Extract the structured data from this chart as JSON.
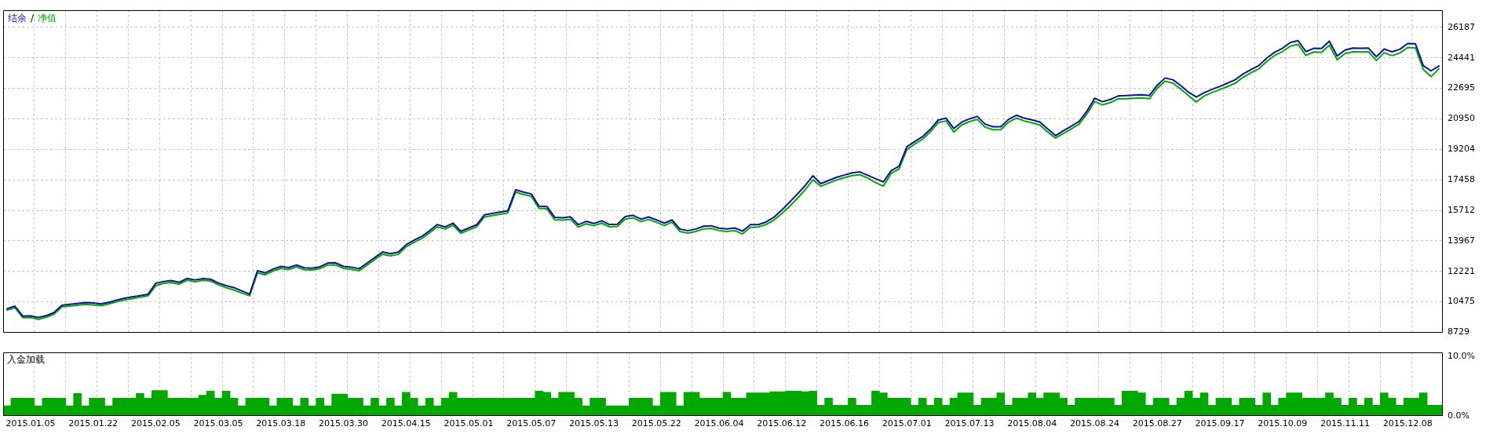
{
  "chart_data": [
    {
      "type": "line",
      "legend": "top left",
      "grid": true,
      "tick_labels": "y",
      "annotations": [
        "/"
      ],
      "categories": [
        null,
        null,
        null,
        "2015.01.05",
        null,
        null,
        null,
        null,
        null,
        null,
        null,
        "2015.01.22",
        null,
        null,
        null,
        null,
        null,
        null,
        null,
        "2015.02.05",
        null,
        null,
        null,
        null,
        null,
        null,
        null,
        "2015.03.05",
        null,
        null,
        null,
        null,
        null,
        null,
        null,
        "2015.03.18",
        null,
        null,
        null,
        null,
        null,
        null,
        null,
        "2015.03.30",
        null,
        null,
        null,
        null,
        null,
        null,
        null,
        "2015.04.15",
        null,
        null,
        null,
        null,
        null,
        null,
        null,
        "2015.05.01",
        null,
        null,
        null,
        null,
        null,
        null,
        null,
        "2015.05.07",
        null,
        null,
        null,
        null,
        null,
        null,
        null,
        "2015.05.13",
        null,
        null,
        null,
        null,
        null,
        null,
        null,
        "2015.05.22",
        null,
        null,
        null,
        null,
        null,
        null,
        null,
        "2015.06.04",
        null,
        null,
        null,
        null,
        null,
        null,
        null,
        "2015.06.12",
        null,
        null,
        null,
        null,
        null,
        null,
        null,
        "2015.06.16",
        null,
        null,
        null,
        null,
        null,
        null,
        null,
        "2015.07.01",
        null,
        null,
        null,
        null,
        null,
        null,
        null,
        "2015.07.13",
        null,
        null,
        null,
        null,
        null,
        null,
        null,
        "2015.08.04",
        null,
        null,
        null,
        null,
        null,
        null,
        null,
        "2015.08.24",
        null,
        null,
        null,
        null,
        null,
        null,
        null,
        "2015.08.27",
        null,
        null,
        null,
        null,
        null,
        null,
        null,
        "2015.09.17",
        null,
        null,
        null,
        null,
        null,
        null,
        null,
        "2015.10.09",
        null,
        null,
        null,
        null,
        null,
        null,
        null,
        "2015.11.11",
        null,
        null,
        null,
        null,
        null,
        null,
        null,
        "2015.12.08",
        null,
        null,
        null,
        null
      ],
      "ylim": [
        8729,
        27190
      ],
      "yticks": [
        8729,
        10475,
        12221,
        13967,
        15712,
        17458,
        19204,
        20950,
        22695,
        24441,
        26187
      ],
      "series": [
        {
          "name": "结余",
          "color": "#1010a0",
          "values": [
            10080,
            10230,
            9660,
            9670,
            9580,
            9680,
            9860,
            10280,
            10330,
            10380,
            10430,
            10410,
            10350,
            10440,
            10570,
            10680,
            10760,
            10830,
            10900,
            11530,
            11640,
            11690,
            11590,
            11810,
            11730,
            11800,
            11770,
            11550,
            11400,
            11290,
            11100,
            10910,
            12250,
            12130,
            12350,
            12500,
            12430,
            12580,
            12420,
            12400,
            12480,
            12700,
            12710,
            12500,
            12450,
            12370,
            12690,
            13010,
            13330,
            13230,
            13320,
            13740,
            14000,
            14220,
            14540,
            14900,
            14760,
            14980,
            14510,
            14700,
            14880,
            15450,
            15530,
            15610,
            15690,
            16890,
            16760,
            16650,
            15950,
            15930,
            15310,
            15290,
            15340,
            14890,
            15080,
            14960,
            15110,
            14900,
            14920,
            15350,
            15430,
            15210,
            15330,
            15160,
            14980,
            15160,
            14640,
            14550,
            14640,
            14800,
            14830,
            14690,
            14650,
            14700,
            14520,
            14890,
            14890,
            15040,
            15310,
            15720,
            16170,
            16640,
            17130,
            17690,
            17240,
            17420,
            17600,
            17730,
            17860,
            17910,
            17720,
            17530,
            17340,
            17990,
            18230,
            19350,
            19650,
            19930,
            20350,
            20880,
            20990,
            20400,
            20760,
            20950,
            21090,
            20650,
            20500,
            20500,
            20920,
            21160,
            20990,
            20890,
            20770,
            20370,
            19990,
            20270,
            20530,
            20800,
            21380,
            22130,
            21930,
            22060,
            22260,
            22280,
            22310,
            22330,
            22290,
            22870,
            23290,
            23190,
            22860,
            22480,
            22200,
            22450,
            22640,
            22810,
            23000,
            23200,
            23530,
            23770,
            24010,
            24430,
            24760,
            24990,
            25320,
            25430,
            24800,
            24990,
            24980,
            25400,
            24550,
            24890,
            25000,
            24990,
            25000,
            24510,
            24950,
            24790,
            24930,
            25260,
            25250,
            24000,
            23700,
            23980
          ]
        },
        {
          "name": "净值",
          "color": "#00a800",
          "values": [
            10000,
            10140,
            9570,
            9580,
            9470,
            9590,
            9770,
            10180,
            10230,
            10280,
            10330,
            10300,
            10250,
            10350,
            10470,
            10580,
            10660,
            10730,
            10810,
            11390,
            11530,
            11580,
            11480,
            11710,
            11620,
            11700,
            11670,
            11450,
            11280,
            11150,
            10980,
            10820,
            12130,
            12020,
            12240,
            12390,
            12320,
            12470,
            12310,
            12300,
            12380,
            12580,
            12590,
            12390,
            12330,
            12250,
            12570,
            12890,
            13200,
            13110,
            13190,
            13620,
            13880,
            14100,
            14420,
            14770,
            14640,
            14860,
            14390,
            14580,
            14760,
            15330,
            15410,
            15490,
            15570,
            16760,
            16620,
            16520,
            15820,
            15800,
            15170,
            15150,
            15200,
            14750,
            14940,
            14830,
            14970,
            14770,
            14790,
            15210,
            15290,
            15070,
            15190,
            15020,
            14840,
            15030,
            14500,
            14410,
            14500,
            14650,
            14680,
            14550,
            14500,
            14550,
            14360,
            14740,
            14760,
            14900,
            15150,
            15520,
            15940,
            16400,
            16890,
            17460,
            17090,
            17270,
            17450,
            17580,
            17700,
            17750,
            17560,
            17300,
            17100,
            17830,
            18080,
            19190,
            19500,
            19780,
            20200,
            20730,
            20830,
            20200,
            20600,
            20790,
            20920,
            20480,
            20330,
            20330,
            20760,
            20990,
            20830,
            20720,
            20600,
            20200,
            19850,
            20110,
            20370,
            20640,
            21220,
            21940,
            21750,
            21880,
            22090,
            22100,
            22130,
            22150,
            22110,
            22700,
            23110,
            22990,
            22660,
            22280,
            21920,
            22260,
            22460,
            22630,
            22800,
            23000,
            23340,
            23590,
            23820,
            24240,
            24580,
            24800,
            25110,
            25220,
            24580,
            24780,
            24760,
            25170,
            24330,
            24690,
            24790,
            24780,
            24790,
            24290,
            24740,
            24570,
            24720,
            25040,
            25020,
            23780,
            23370,
            23820
          ]
        }
      ]
    },
    {
      "type": "bar",
      "title": "入金加载",
      "grid": "x",
      "color": "#00a800",
      "categories": [
        null,
        null,
        null,
        "2015.01.05",
        null,
        null,
        null,
        null,
        null,
        null,
        null,
        "2015.01.22",
        null,
        null,
        null,
        null,
        null,
        null,
        null,
        "2015.02.05",
        null,
        null,
        null,
        null,
        null,
        null,
        null,
        "2015.03.05",
        null,
        null,
        null,
        null,
        null,
        null,
        null,
        "2015.03.18",
        null,
        null,
        null,
        null,
        null,
        null,
        null,
        "2015.03.30",
        null,
        null,
        null,
        null,
        null,
        null,
        null,
        "2015.04.15",
        null,
        null,
        null,
        null,
        null,
        null,
        null,
        "2015.05.01",
        null,
        null,
        null,
        null,
        null,
        null,
        null,
        "2015.05.07",
        null,
        null,
        null,
        null,
        null,
        null,
        null,
        "2015.05.13",
        null,
        null,
        null,
        null,
        null,
        null,
        null,
        "2015.05.22",
        null,
        null,
        null,
        null,
        null,
        null,
        null,
        "2015.06.04",
        null,
        null,
        null,
        null,
        null,
        null,
        null,
        "2015.06.12",
        null,
        null,
        null,
        null,
        null,
        null,
        null,
        "2015.06.16",
        null,
        null,
        null,
        null,
        null,
        null,
        null,
        "2015.07.01",
        null,
        null,
        null,
        null,
        null,
        null,
        null,
        "2015.07.13",
        null,
        null,
        null,
        null,
        null,
        null,
        null,
        "2015.08.04",
        null,
        null,
        null,
        null,
        null,
        null,
        null,
        "2015.08.24",
        null,
        null,
        null,
        null,
        null,
        null,
        null,
        "2015.08.27",
        null,
        null,
        null,
        null,
        null,
        null,
        null,
        "2015.09.17",
        null,
        null,
        null,
        null,
        null,
        null,
        null,
        "2015.10.09",
        null,
        null,
        null,
        null,
        null,
        null,
        null,
        "2015.11.11",
        null,
        null,
        null,
        null,
        null,
        null,
        null,
        "2015.12.08",
        null,
        null,
        null,
        null
      ],
      "ylim": [
        0,
        10.8
      ],
      "yticks": [
        {
          "value": 0,
          "label": "0.0%"
        },
        {
          "value": 10,
          "label": "10.0%"
        }
      ],
      "values": [
        1.7,
        3.0,
        3.0,
        3.0,
        1.7,
        3.0,
        3.0,
        3.0,
        1.7,
        3.8,
        1.7,
        3.0,
        3.0,
        1.7,
        3.0,
        3.0,
        3.0,
        3.8,
        3.0,
        4.3,
        4.3,
        3.0,
        3.0,
        3.0,
        3.0,
        3.5,
        4.2,
        3.0,
        4.2,
        3.0,
        1.7,
        3.0,
        3.0,
        3.0,
        1.7,
        3.0,
        3.0,
        1.7,
        3.0,
        1.7,
        3.0,
        1.7,
        3.7,
        3.7,
        3.0,
        3.0,
        1.7,
        3.0,
        1.7,
        3.0,
        1.7,
        4.0,
        3.0,
        1.7,
        3.0,
        1.7,
        3.0,
        4.0,
        3.0,
        3.0,
        3.0,
        3.0,
        3.0,
        3.0,
        3.0,
        3.0,
        3.0,
        3.0,
        4.2,
        4.0,
        3.0,
        4.0,
        4.0,
        3.0,
        1.7,
        3.0,
        3.0,
        1.7,
        1.7,
        1.7,
        3.0,
        3.0,
        3.0,
        1.7,
        4.0,
        4.0,
        1.7,
        4.0,
        4.0,
        3.0,
        3.0,
        3.0,
        4.0,
        3.0,
        3.0,
        3.9,
        3.9,
        3.9,
        4.1,
        4.1,
        4.2,
        4.2,
        4.1,
        4.2,
        1.8,
        3.0,
        1.8,
        1.8,
        3.0,
        1.8,
        1.8,
        4.2,
        3.9,
        3.0,
        3.0,
        3.0,
        1.8,
        3.0,
        1.8,
        3.0,
        1.8,
        3.0,
        3.9,
        3.9,
        1.8,
        3.0,
        3.0,
        3.9,
        1.8,
        3.0,
        3.0,
        3.9,
        3.0,
        3.9,
        3.9,
        3.0,
        1.8,
        3.0,
        3.0,
        3.0,
        3.0,
        3.0,
        1.8,
        4.2,
        4.2,
        3.9,
        1.8,
        3.0,
        3.0,
        1.8,
        3.0,
        4.2,
        3.0,
        3.9,
        1.8,
        3.0,
        3.0,
        1.8,
        3.0,
        3.0,
        1.8,
        3.9,
        1.8,
        3.0,
        3.9,
        3.9,
        3.0,
        3.0,
        3.0,
        3.9,
        3.0,
        1.8,
        3.0,
        1.8,
        3.0,
        1.8,
        3.9,
        3.0,
        1.8,
        3.0,
        3.0,
        3.9,
        1.8,
        1.8
      ]
    }
  ]
}
